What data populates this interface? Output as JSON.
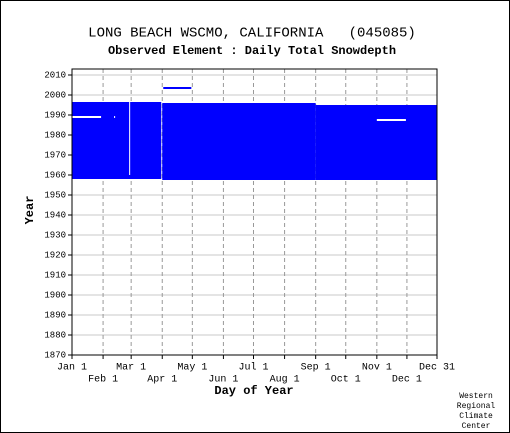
{
  "chart_data": {
    "type": "range",
    "title": "LONG BEACH WSCMO, CALIFORNIA   (045085)",
    "subtitle": "Observed Element : Daily Total Snowdepth",
    "x_label": "Day of Year",
    "y_label": "Year",
    "credit": [
      "Western",
      "Regional",
      "Climate",
      "Center"
    ],
    "xlim": [
      1,
      365
    ],
    "xticks": [
      {
        "value": 1,
        "label": "Jan 1"
      },
      {
        "value": 32,
        "label": "Feb 1"
      },
      {
        "value": 60,
        "label": "Mar 1"
      },
      {
        "value": 91,
        "label": "Apr 1"
      },
      {
        "value": 121,
        "label": "May 1"
      },
      {
        "value": 152,
        "label": "Jun 1"
      },
      {
        "value": 182,
        "label": "Jul 1"
      },
      {
        "value": 213,
        "label": "Aug 1"
      },
      {
        "value": 244,
        "label": "Sep 1"
      },
      {
        "value": 274,
        "label": "Oct 1"
      },
      {
        "value": 305,
        "label": "Nov 1"
      },
      {
        "value": 335,
        "label": "Dec 1"
      },
      {
        "value": 365,
        "label": "Dec 31"
      }
    ],
    "ylim": [
      1870,
      2010
    ],
    "yticks": [
      1870,
      1880,
      1890,
      1900,
      1910,
      1920,
      1930,
      1940,
      1950,
      1960,
      1970,
      1980,
      1990,
      2000,
      2010
    ],
    "grid": true,
    "segments": [
      {
        "x": [
          1,
          90
        ],
        "y": [
          1958,
          1996.5
        ],
        "color": "#0000ff"
      },
      {
        "x": [
          91,
          244
        ],
        "y": [
          1957.5,
          1996
        ],
        "color": "#0000ff"
      },
      {
        "x": [
          244,
          365
        ],
        "y": [
          1957.5,
          1995
        ],
        "color": "#0000ff"
      },
      {
        "x": [
          92,
          120
        ],
        "y": [
          2003,
          2004
        ],
        "color": "#0000ff"
      },
      {
        "x": [
          1,
          30
        ],
        "y": [
          1988.5,
          1989.5
        ],
        "color": "#ffffff"
      },
      {
        "x": [
          43,
          44
        ],
        "y": [
          1988.5,
          1989.5
        ],
        "color": "#ffffff"
      },
      {
        "x": [
          58,
          59
        ],
        "y": [
          1960,
          1996.5
        ],
        "color": "#ffffff"
      },
      {
        "x": [
          305,
          334
        ],
        "y": [
          1987,
          1988
        ],
        "color": "#ffffff"
      }
    ]
  }
}
